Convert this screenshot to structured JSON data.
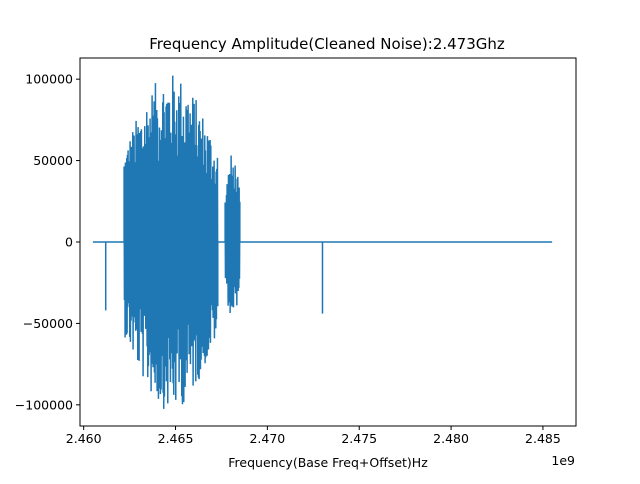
{
  "chart_data": {
    "type": "line",
    "title": "Frequency Amplitude(Cleaned Noise):2.473Ghz",
    "xlabel": "Frequency(Base Freq+Offset)Hz",
    "ylabel": "",
    "x_offset_label": "1e9",
    "xlim": [
      2.4598,
      2.4868
    ],
    "ylim": [
      -113000,
      113000
    ],
    "x_ticks": [
      {
        "value": 2.46,
        "label": "2.460"
      },
      {
        "value": 2.465,
        "label": "2.465"
      },
      {
        "value": 2.47,
        "label": "2.470"
      },
      {
        "value": 2.475,
        "label": "2.475"
      },
      {
        "value": 2.48,
        "label": "2.480"
      },
      {
        "value": 2.485,
        "label": "2.485"
      }
    ],
    "y_ticks": [
      {
        "value": -100000,
        "label": "−100000"
      },
      {
        "value": -50000,
        "label": "−50000"
      },
      {
        "value": 0,
        "label": "0"
      },
      {
        "value": 50000,
        "label": "50000"
      },
      {
        "value": 100000,
        "label": "100000"
      }
    ],
    "line_color": "#1f77b4",
    "grid": false,
    "legend": "none",
    "series": [
      {
        "x_start": 2.4605,
        "x_end": 2.4855,
        "baseline": 0,
        "spikes": [
          {
            "x": 2.4612,
            "y": -42000
          },
          {
            "x": 2.473,
            "y": -44000
          }
        ],
        "bursts": [
          {
            "x_start": 2.4622,
            "x_end": 2.4673,
            "env_max": 104000,
            "env_min": -104000
          },
          {
            "x_start": 2.4677,
            "x_end": 2.4685,
            "env_max": 55000,
            "env_min": -48000
          }
        ]
      }
    ]
  }
}
